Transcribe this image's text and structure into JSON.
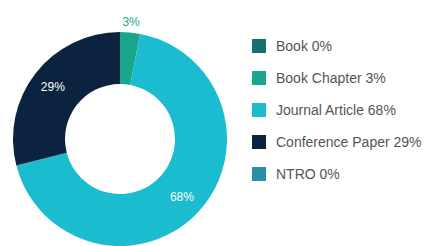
{
  "chart_data": {
    "type": "donut",
    "categories": [
      "Book",
      "Book Chapter",
      "Journal Article",
      "Conference Paper",
      "NTRO"
    ],
    "values": [
      0,
      3,
      68,
      29,
      0
    ],
    "value_labels": [
      "0%",
      "3%",
      "68%",
      "29%",
      "0%"
    ],
    "colors": [
      "#17706f",
      "#1aa68c",
      "#1bbccf",
      "#0c2340",
      "#2a8ea8"
    ],
    "data_labels": true,
    "legend": "right"
  }
}
